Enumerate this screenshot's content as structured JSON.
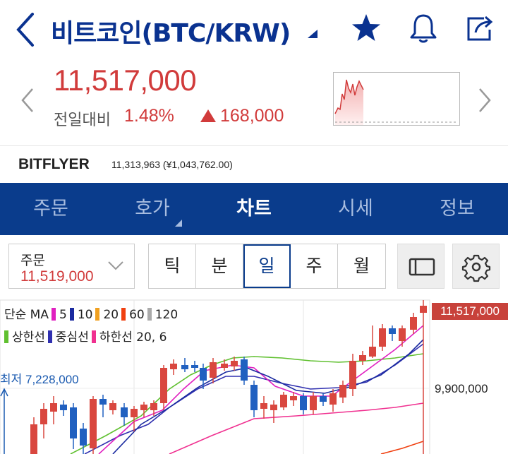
{
  "header": {
    "title": "비트코인(BTC/KRW)",
    "accent": "#0a3290"
  },
  "price": {
    "current": "11,517,000",
    "diff_label": "전일대비",
    "diff_pct": "1.48%",
    "diff_amount": "168,000",
    "up_color": "#d13b3b"
  },
  "exchange": {
    "name": "BITFLYER",
    "value": "11,313,963 (¥1,043,762.00)"
  },
  "tabs": [
    {
      "label": "주문",
      "active": false
    },
    {
      "label": "호가",
      "active": false
    },
    {
      "label": "차트",
      "active": true
    },
    {
      "label": "시세",
      "active": false
    },
    {
      "label": "정보",
      "active": false
    }
  ],
  "order": {
    "label": "주문",
    "value": "11,519,000"
  },
  "periods": [
    {
      "label": "틱",
      "active": false
    },
    {
      "label": "분",
      "active": false
    },
    {
      "label": "일",
      "active": true
    },
    {
      "label": "주",
      "active": false
    },
    {
      "label": "월",
      "active": false
    }
  ],
  "chart": {
    "legend1": {
      "label": "단순 MA",
      "ma": [
        {
          "period": "5",
          "color": "#e020c0"
        },
        {
          "period": "10",
          "color": "#1a2aa0"
        },
        {
          "period": "20",
          "color": "#f0a020"
        },
        {
          "period": "60",
          "color": "#f04010"
        },
        {
          "period": "120",
          "color": "#aaaaaa"
        }
      ]
    },
    "legend2": {
      "upper": {
        "label": "상한선",
        "color": "#60c030"
      },
      "middle": {
        "label": "중심선",
        "color": "#3030b0"
      },
      "lower": {
        "label": "하한선 20, 6",
        "color": "#f03090"
      }
    },
    "current_tag": "11,517,000",
    "axis_value": "9,900,000",
    "low_label": "최저 7,228,000",
    "up_color": "#d9473f",
    "down_color": "#2060c0"
  }
}
